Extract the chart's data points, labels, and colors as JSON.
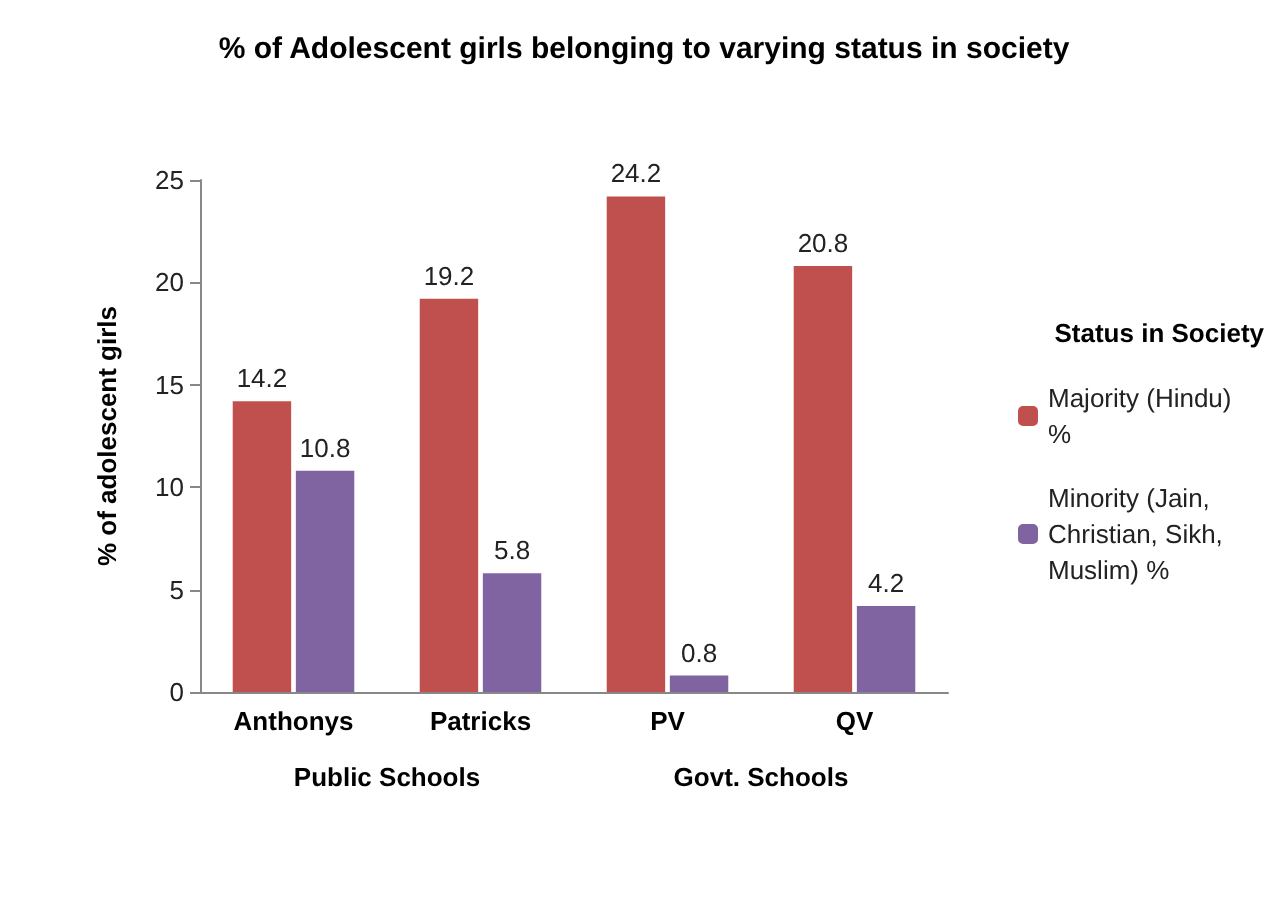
{
  "chart_data": {
    "type": "bar",
    "title": "% of Adolescent girls belonging to varying status in society",
    "ylabel": "% of adolescent girls",
    "legend_title": "Status in Society",
    "categories": [
      "Anthonys",
      "Patricks",
      "PV",
      "QV"
    ],
    "series": [
      {
        "name": "Majority (Hindu) %",
        "color": "#c0504d",
        "values": [
          14.2,
          19.2,
          24.2,
          20.8
        ]
      },
      {
        "name": "Minority (Jain, Christian, Sikh, Muslim) %",
        "color": "#8064a2",
        "values": [
          10.8,
          5.8,
          0.8,
          4.2
        ]
      }
    ],
    "ylim": [
      0,
      25
    ],
    "yticks": [
      0,
      5,
      10,
      15,
      20,
      25
    ],
    "grid": false,
    "legend": "right",
    "data_labels": true,
    "annotations": [
      "Public Schools",
      "Govt. Schools"
    ]
  }
}
